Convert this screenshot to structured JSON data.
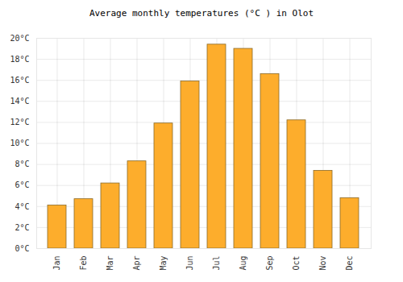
{
  "chart_data": {
    "type": "bar",
    "title": "Average monthly temperatures (°C ) in Olot",
    "categories": [
      "Jan",
      "Feb",
      "Mar",
      "Apr",
      "May",
      "Jun",
      "Jul",
      "Aug",
      "Sep",
      "Oct",
      "Nov",
      "Dec"
    ],
    "values": [
      4.1,
      4.7,
      6.2,
      8.3,
      11.9,
      15.9,
      19.4,
      19.0,
      16.6,
      12.2,
      7.4,
      4.8
    ],
    "color": "#fdad2c",
    "ylim": [
      0,
      20
    ],
    "yticks": [
      {
        "value": 0,
        "label": "0°C"
      },
      {
        "value": 2,
        "label": "2°C"
      },
      {
        "value": 4,
        "label": "4°C"
      },
      {
        "value": 6,
        "label": "6°C"
      },
      {
        "value": 8,
        "label": "8°C"
      },
      {
        "value": 10,
        "label": "10°C"
      },
      {
        "value": 12,
        "label": "12°C"
      },
      {
        "value": 14,
        "label": "14°C"
      },
      {
        "value": 16,
        "label": "16°C"
      },
      {
        "value": 18,
        "label": "18°C"
      },
      {
        "value": 20,
        "label": "20°C"
      }
    ],
    "grid": true
  }
}
